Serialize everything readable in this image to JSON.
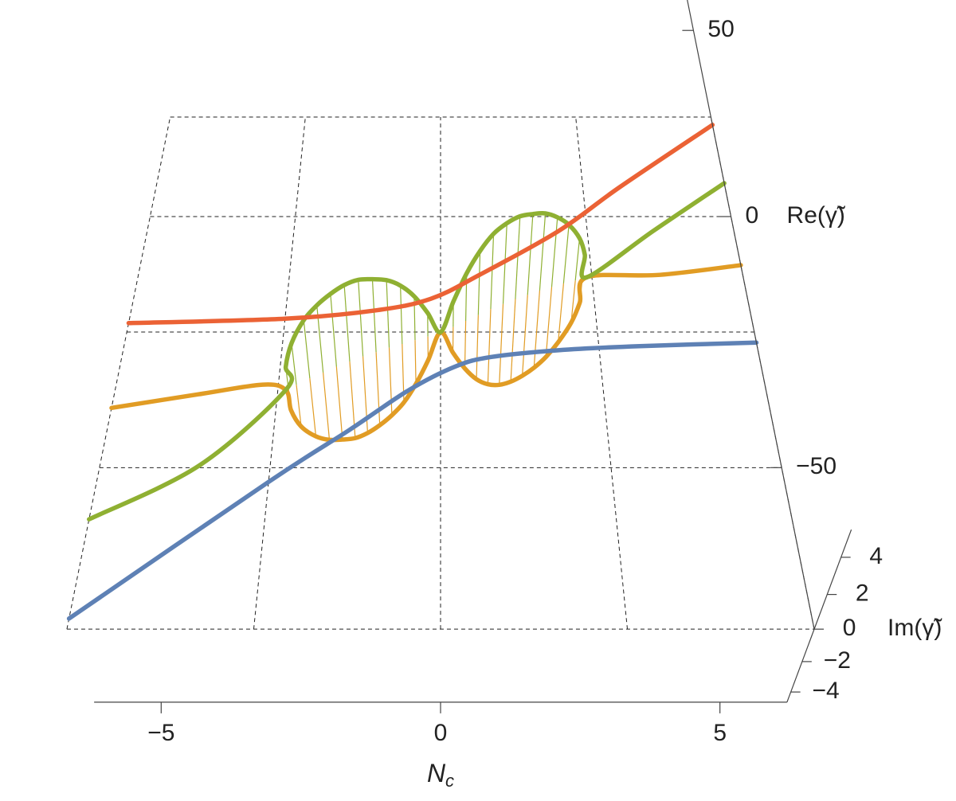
{
  "chart_data": {
    "type": "line3d",
    "xlabel": {
      "text": "N",
      "subscript": "c"
    },
    "ylabel": "Im(γ̃)",
    "zlabel": "Re(γ̃)",
    "xlim": [
      -6.2,
      6.2
    ],
    "ylim": [
      -4.7,
      5.4
    ],
    "zlim": [
      -75,
      60
    ],
    "xticks": [
      {
        "value": -5,
        "label": "−5"
      },
      0,
      5
    ],
    "yticks": [
      {
        "value": -4,
        "label": "−4"
      },
      {
        "value": -2,
        "label": "−2"
      },
      0,
      2,
      4
    ],
    "zticks": [
      {
        "value": -50,
        "label": "−50"
      },
      0,
      50
    ],
    "facegrid_x": [
      -6.2,
      -3.1,
      0,
      3.1,
      6.2
    ],
    "facegrid_z": [
      -75,
      -50,
      -25,
      0,
      25
    ],
    "filling": true,
    "series": [
      {
        "color": "#e19c24",
        "x": [
          -6.2,
          -4.6,
          -3.4,
          -2.95,
          -2.9,
          -2.75,
          -2.5,
          -2.25,
          -2,
          -1.75,
          -1.5,
          -1.25,
          -1,
          -0.75,
          -0.5,
          -0.25,
          0,
          0.25,
          0.5,
          0.75,
          1,
          1.25,
          1.5,
          1.75,
          2,
          2.25,
          2.5,
          2.75,
          2.9,
          3,
          4.5,
          6.2
        ],
        "y": [
          0,
          0,
          0,
          0,
          -1.2,
          -2.3,
          -3.2,
          -3.7,
          -4,
          -4.2,
          -4.2,
          -4,
          -3.7,
          -3.2,
          -2.4,
          -1.3,
          0,
          -1.4,
          -2.6,
          -3.5,
          -4.1,
          -4.4,
          -4.5,
          -4.4,
          -4.2,
          -3.8,
          -3.2,
          -2.3,
          -1.3,
          0,
          0,
          0
        ],
        "z": [
          -39.5,
          -37,
          -35.2,
          -36.2,
          -36,
          -35.5,
          -34.5,
          -33.6,
          -32.6,
          -31.7,
          -30.7,
          -29.8,
          -28.8,
          -27.9,
          -26.9,
          -26,
          -25,
          -24.1,
          -23.1,
          -22.2,
          -21.2,
          -20.3,
          -19.3,
          -18.4,
          -17.4,
          -16.5,
          -15.5,
          -14.6,
          -14,
          -13.6,
          -13.1,
          -11
        ]
      },
      {
        "color": "#8fb032",
        "x": [
          -6.2,
          -4.4,
          -2.95,
          -2.9,
          -2.75,
          -2.5,
          -2.25,
          -2,
          -1.75,
          -1.5,
          -1.25,
          -1,
          -0.75,
          -0.5,
          -0.25,
          0,
          0.25,
          0.5,
          0.75,
          1,
          1.25,
          1.5,
          1.75,
          2,
          2.25,
          2.5,
          2.75,
          2.9,
          3,
          4.5,
          6.2
        ],
        "y": [
          0,
          0,
          0,
          1.2,
          2.3,
          3.2,
          3.7,
          4,
          4.2,
          4.2,
          4,
          3.7,
          3.2,
          2.4,
          1.3,
          0,
          1.4,
          2.6,
          3.5,
          4.1,
          4.4,
          4.5,
          4.4,
          4.2,
          3.8,
          3.2,
          2.3,
          1.3,
          0,
          0,
          0
        ],
        "z": [
          -58.5,
          -49.7,
          -36.2,
          -36,
          -35.5,
          -34.5,
          -33.6,
          -32.6,
          -31.7,
          -30.7,
          -29.8,
          -28.8,
          -27.9,
          -26.9,
          -26,
          -25,
          -24.1,
          -23.1,
          -22.2,
          -21.2,
          -20.3,
          -19.3,
          -18.4,
          -17.4,
          -16.5,
          -15.5,
          -14.6,
          -14,
          -13.6,
          -3.3,
          8
        ]
      },
      {
        "color": "#eb6235",
        "x": [
          -6.2,
          -3.1,
          -1.3,
          -0.2,
          0.8,
          2.5,
          3.9,
          6.2
        ],
        "y": [
          0,
          0,
          0,
          0,
          0,
          0,
          0,
          0
        ],
        "z": [
          -23.2,
          -22.3,
          -20.6,
          -18.2,
          -13.1,
          -3.3,
          7,
          22.9
        ]
      },
      {
        "color": "#5e81b5",
        "x": [
          -6.2,
          -3.1,
          -1.7,
          -0.6,
          0.3,
          1,
          2.3,
          3.9,
          6.2
        ],
        "y": [
          0,
          0,
          0,
          0,
          0,
          0,
          0,
          0,
          0
        ],
        "z": [
          -73.5,
          -52.4,
          -43.5,
          -36.2,
          -31.7,
          -29.9,
          -28.6,
          -27.8,
          -27.1
        ]
      }
    ]
  }
}
